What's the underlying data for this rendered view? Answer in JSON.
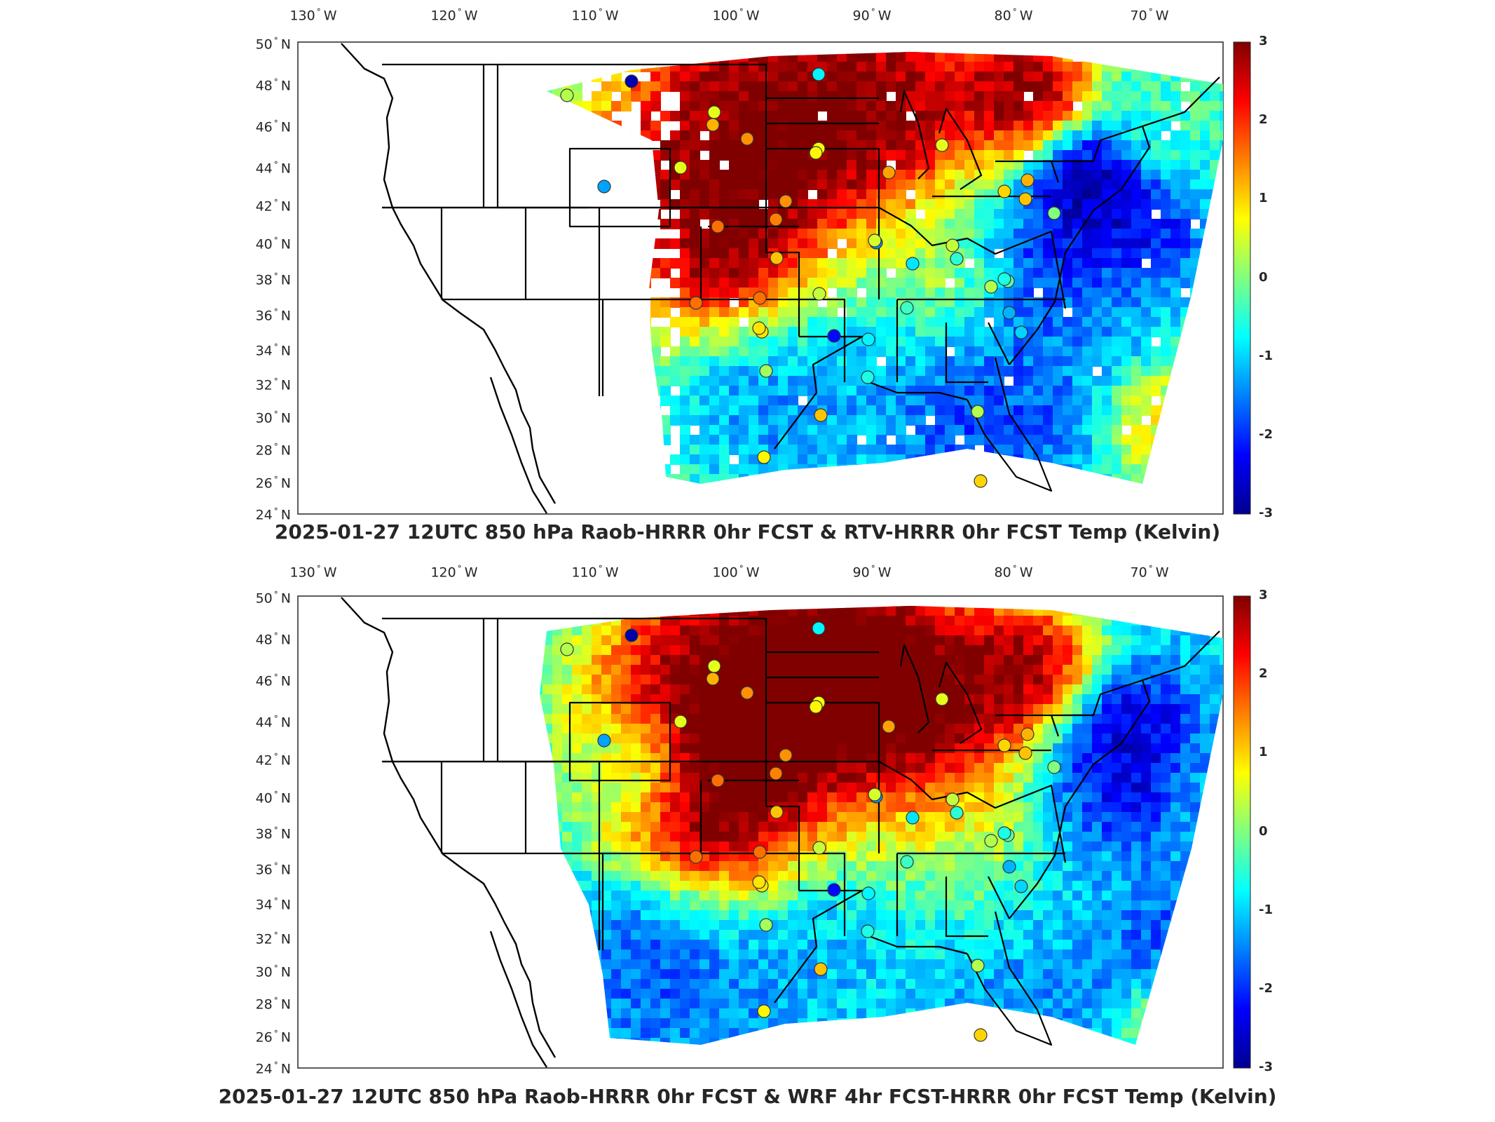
{
  "colorbar": {
    "ticks": [
      "3",
      "2",
      "1",
      "0",
      "-1",
      "-2",
      "-3"
    ],
    "colormap": [
      "#00008f",
      "#0000ff",
      "#0080ff",
      "#00ffff",
      "#80ff80",
      "#ffff00",
      "#ff8000",
      "#ff0000",
      "#800000"
    ]
  },
  "axes": {
    "lon_labels": [
      "130",
      "120",
      "110",
      "100",
      "90",
      "80",
      "70"
    ],
    "lon_suffix": "W",
    "lat_labels": [
      "50",
      "48",
      "46",
      "44",
      "42",
      "40",
      "38",
      "36",
      "34",
      "32",
      "30",
      "28",
      "26",
      "24"
    ],
    "lat_suffix": "N"
  },
  "panels": [
    {
      "title": "2025-01-27 12UTC 850 hPa Raob-HRRR 0hr FCST & RTV-HRRR 0hr FCST Temp (Kelvin)",
      "field_description": "satellite retrieval coverage (with gaps) over central/eastern US",
      "stations_color_values": [
        -2.8,
        0.3,
        0.6,
        1.4,
        -1.3,
        0.7,
        1.2,
        1.6,
        1.5,
        0.6,
        1.1,
        0.8,
        1.4,
        -0.8,
        1.6,
        0.9,
        0.9,
        1.6,
        0.2,
        0.4,
        -1.4,
        -2.2,
        -0.6,
        1.1,
        0.5,
        -0.4,
        -0.8,
        0.6,
        1.3,
        -0.9,
        0.4,
        -0.2,
        -0.5,
        1.2,
        0.3,
        0.3,
        1.0,
        1.1,
        0.0,
        -0.6,
        -1.2,
        -1.0,
        1.0,
        0.8
      ]
    },
    {
      "title": "2025-01-27 12UTC 850 hPa Raob-HRRR 0hr FCST & WRF 4hr FCST-HRRR 0hr FCST Temp (Kelvin)",
      "field_description": "full-coverage model difference field over central/eastern US",
      "stations_color_values": [
        -2.8,
        0.3,
        0.6,
        1.4,
        -1.3,
        0.7,
        1.2,
        1.6,
        1.5,
        0.6,
        1.1,
        0.8,
        1.4,
        -0.8,
        1.6,
        0.9,
        0.9,
        1.6,
        0.2,
        0.4,
        -1.4,
        -2.2,
        -0.6,
        1.1,
        0.5,
        -0.4,
        -0.8,
        0.6,
        1.3,
        -0.9,
        0.4,
        -0.2,
        -0.5,
        1.2,
        0.3,
        0.3,
        1.0,
        1.1,
        0.0,
        -0.6,
        -1.2,
        -1.0,
        1.0,
        0.8
      ]
    }
  ]
}
